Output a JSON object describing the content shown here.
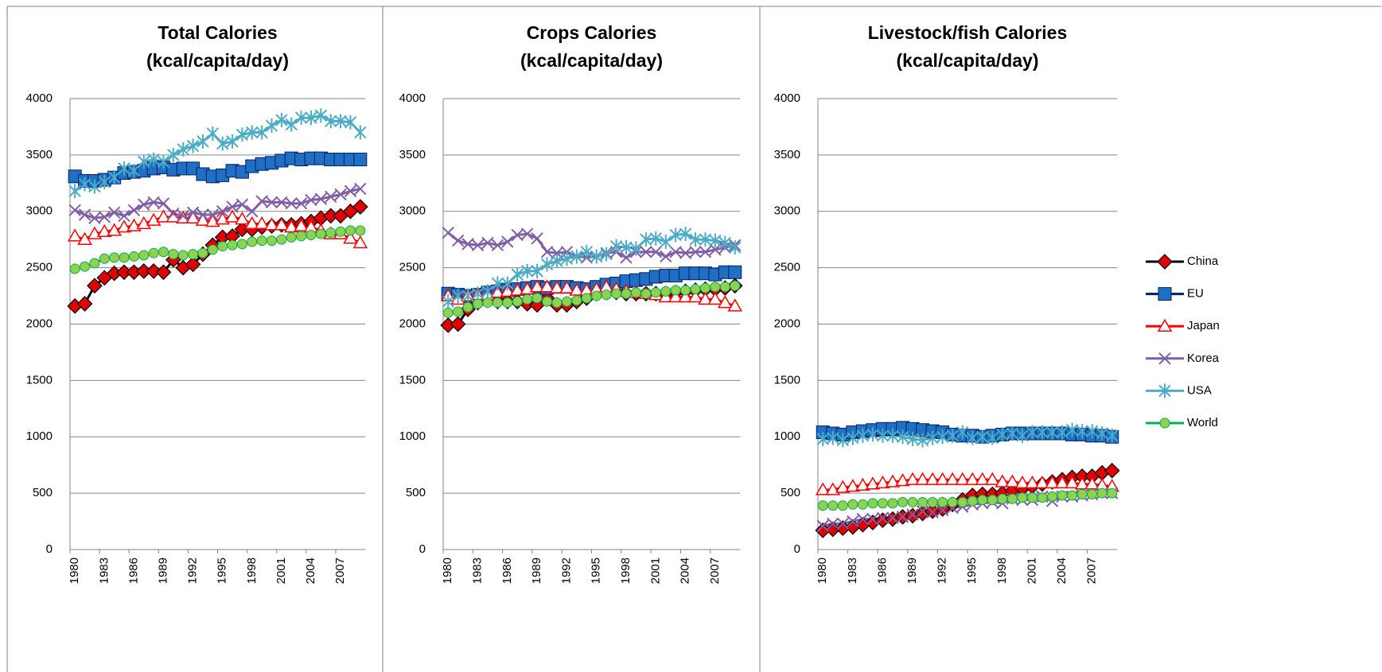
{
  "chart_data": [
    {
      "type": "line",
      "title": [
        "Total Calories",
        "(kcal/capita/day)"
      ],
      "categories": [
        "1980",
        null,
        null,
        "1983",
        null,
        null,
        "1986",
        null,
        null,
        "1989",
        null,
        null,
        "1992",
        null,
        null,
        "1995",
        null,
        null,
        "1998",
        null,
        null,
        "2001",
        null,
        null,
        "2004",
        null,
        null,
        "2007",
        null,
        null
      ],
      "ylim": [
        0,
        4000
      ],
      "yticks": [
        0,
        500,
        1000,
        1500,
        2000,
        2500,
        3000,
        3500,
        4000
      ],
      "grid": true,
      "series": [
        {
          "name": "China",
          "color": "#e00000",
          "line_color": "#000000",
          "marker": "diamond",
          "values": [
            2160,
            2180,
            2340,
            2410,
            2450,
            2460,
            2460,
            2470,
            2470,
            2460,
            2570,
            2500,
            2530,
            2620,
            2700,
            2770,
            2780,
            2840,
            2840,
            2860,
            2870,
            2880,
            2880,
            2890,
            2910,
            2940,
            2960,
            2960,
            3000,
            3040
          ]
        },
        {
          "name": "EU",
          "color": "#1f6fc5",
          "line_color": "#002060",
          "marker": "square",
          "values": [
            3310,
            3270,
            3270,
            3280,
            3300,
            3340,
            3350,
            3360,
            3380,
            3390,
            3370,
            3380,
            3380,
            3330,
            3310,
            3320,
            3360,
            3350,
            3400,
            3420,
            3430,
            3450,
            3470,
            3460,
            3470,
            3470,
            3460,
            3460,
            3460,
            3460
          ]
        },
        {
          "name": "Japan",
          "color": "#ff0000",
          "line_color": "#ff0000",
          "marker": "triangle",
          "values": [
            2780,
            2750,
            2800,
            2820,
            2830,
            2860,
            2870,
            2890,
            2920,
            2950,
            2950,
            2940,
            2940,
            2920,
            2910,
            2930,
            2950,
            2930,
            2890,
            2890,
            2880,
            2880,
            2860,
            2870,
            2860,
            2830,
            2800,
            2800,
            2760,
            2720
          ]
        },
        {
          "name": "Korea",
          "color": "#7f5fa5",
          "line_color": "#7f5fa5",
          "marker": "x",
          "values": [
            3010,
            2970,
            2940,
            2950,
            2990,
            2960,
            3010,
            3060,
            3080,
            3070,
            2980,
            2960,
            2990,
            2970,
            2970,
            3000,
            3040,
            3060,
            3000,
            3090,
            3080,
            3080,
            3070,
            3070,
            3100,
            3110,
            3130,
            3150,
            3180,
            3200
          ]
        },
        {
          "name": "USA",
          "color": "#4bacc6",
          "line_color": "#4bacc6",
          "marker": "star",
          "values": [
            3180,
            3240,
            3220,
            3260,
            3300,
            3380,
            3360,
            3440,
            3460,
            3440,
            3500,
            3550,
            3580,
            3620,
            3690,
            3600,
            3620,
            3680,
            3700,
            3700,
            3760,
            3810,
            3770,
            3830,
            3830,
            3850,
            3800,
            3800,
            3790,
            3700
          ]
        },
        {
          "name": "World",
          "color": "#92d050",
          "line_color": "#00b050",
          "marker": "circle",
          "values": [
            2490,
            2510,
            2540,
            2580,
            2590,
            2590,
            2600,
            2610,
            2630,
            2640,
            2620,
            2610,
            2620,
            2630,
            2660,
            2690,
            2700,
            2710,
            2730,
            2740,
            2740,
            2750,
            2770,
            2780,
            2790,
            2800,
            2810,
            2820,
            2830,
            2830
          ]
        }
      ]
    },
    {
      "type": "line",
      "title": [
        "Crops Calories",
        "(kcal/capita/day)"
      ],
      "categories": [
        "1980",
        null,
        null,
        "1983",
        null,
        null,
        "1986",
        null,
        null,
        "1989",
        null,
        null,
        "1992",
        null,
        null,
        "1995",
        null,
        null,
        "1998",
        null,
        null,
        "2001",
        null,
        null,
        "2004",
        null,
        null,
        "2007",
        null,
        null
      ],
      "ylim": [
        0,
        4000
      ],
      "yticks": [
        0,
        500,
        1000,
        1500,
        2000,
        2500,
        3000,
        3500,
        4000
      ],
      "grid": true,
      "series": [
        {
          "name": "China",
          "color": "#e00000",
          "line_color": "#000000",
          "marker": "diamond",
          "values": [
            1990,
            2000,
            2130,
            2190,
            2210,
            2200,
            2200,
            2200,
            2180,
            2170,
            2230,
            2170,
            2170,
            2200,
            2230,
            2270,
            2280,
            2280,
            2270,
            2270,
            2270,
            2270,
            2270,
            2280,
            2290,
            2300,
            2310,
            2310,
            2320,
            2340
          ]
        },
        {
          "name": "EU",
          "color": "#1f6fc5",
          "line_color": "#002060",
          "marker": "square",
          "values": [
            2270,
            2260,
            2250,
            2260,
            2280,
            2290,
            2300,
            2310,
            2320,
            2330,
            2320,
            2330,
            2330,
            2320,
            2310,
            2330,
            2350,
            2360,
            2380,
            2390,
            2400,
            2420,
            2430,
            2430,
            2450,
            2450,
            2450,
            2440,
            2460,
            2460
          ]
        },
        {
          "name": "Japan",
          "color": "#ff0000",
          "line_color": "#ff0000",
          "marker": "triangle",
          "values": [
            2250,
            2220,
            2250,
            2260,
            2260,
            2280,
            2290,
            2300,
            2310,
            2330,
            2330,
            2320,
            2320,
            2300,
            2300,
            2310,
            2330,
            2310,
            2290,
            2280,
            2270,
            2260,
            2240,
            2240,
            2240,
            2240,
            2220,
            2220,
            2190,
            2160
          ]
        },
        {
          "name": "Korea",
          "color": "#7f5fa5",
          "line_color": "#7f5fa5",
          "marker": "x",
          "values": [
            2810,
            2740,
            2710,
            2700,
            2720,
            2700,
            2730,
            2790,
            2800,
            2760,
            2640,
            2630,
            2640,
            2600,
            2590,
            2600,
            2630,
            2640,
            2590,
            2640,
            2640,
            2640,
            2600,
            2640,
            2630,
            2640,
            2640,
            2660,
            2680,
            2700
          ]
        },
        {
          "name": "USA",
          "color": "#4bacc6",
          "line_color": "#4bacc6",
          "marker": "star",
          "values": [
            2200,
            2250,
            2250,
            2270,
            2290,
            2360,
            2360,
            2440,
            2470,
            2470,
            2530,
            2560,
            2580,
            2600,
            2640,
            2600,
            2620,
            2690,
            2680,
            2670,
            2750,
            2760,
            2730,
            2790,
            2800,
            2750,
            2750,
            2740,
            2720,
            2680
          ]
        },
        {
          "name": "World",
          "color": "#92d050",
          "line_color": "#00b050",
          "marker": "circle",
          "values": [
            2100,
            2110,
            2150,
            2180,
            2190,
            2190,
            2190,
            2200,
            2220,
            2230,
            2200,
            2190,
            2200,
            2210,
            2230,
            2250,
            2260,
            2270,
            2270,
            2280,
            2270,
            2280,
            2290,
            2300,
            2300,
            2310,
            2320,
            2330,
            2330,
            2340
          ]
        }
      ]
    },
    {
      "type": "line",
      "title": [
        "Livestock/fish Calories",
        "(kcal/capita/day)"
      ],
      "categories": [
        "1980",
        null,
        null,
        "1983",
        null,
        null,
        "1986",
        null,
        null,
        "1989",
        null,
        null,
        "1992",
        null,
        null,
        "1995",
        null,
        null,
        "1998",
        null,
        null,
        "2001",
        null,
        null,
        "2004",
        null,
        null,
        "2007",
        null,
        null
      ],
      "ylim": [
        0,
        4000
      ],
      "yticks": [
        0,
        500,
        1000,
        1500,
        2000,
        2500,
        3000,
        3500,
        4000
      ],
      "grid": true,
      "legend": "right",
      "series": [
        {
          "name": "China",
          "color": "#e00000",
          "line_color": "#000000",
          "marker": "diamond",
          "values": [
            170,
            180,
            190,
            200,
            220,
            240,
            260,
            270,
            290,
            300,
            320,
            340,
            360,
            400,
            440,
            480,
            490,
            490,
            500,
            520,
            540,
            560,
            580,
            600,
            620,
            640,
            650,
            650,
            680,
            700
          ]
        },
        {
          "name": "EU",
          "color": "#1f6fc5",
          "line_color": "#002060",
          "marker": "square",
          "values": [
            1040,
            1030,
            1020,
            1040,
            1050,
            1060,
            1070,
            1070,
            1080,
            1070,
            1060,
            1050,
            1040,
            1020,
            1010,
            1010,
            1000,
            1010,
            1020,
            1030,
            1030,
            1030,
            1030,
            1030,
            1030,
            1020,
            1020,
            1010,
            1010,
            1000
          ]
        },
        {
          "name": "Japan",
          "color": "#ff0000",
          "line_color": "#ff0000",
          "marker": "triangle",
          "values": [
            530,
            530,
            550,
            560,
            570,
            580,
            590,
            600,
            610,
            620,
            620,
            620,
            620,
            620,
            620,
            620,
            620,
            620,
            600,
            600,
            590,
            590,
            590,
            590,
            590,
            590,
            580,
            580,
            570,
            560
          ]
        },
        {
          "name": "Korea",
          "color": "#7f5fa5",
          "line_color": "#7f5fa5",
          "marker": "x",
          "values": [
            210,
            230,
            230,
            250,
            270,
            270,
            280,
            280,
            290,
            310,
            340,
            330,
            350,
            370,
            380,
            400,
            410,
            420,
            410,
            450,
            440,
            440,
            470,
            430,
            470,
            470,
            480,
            490,
            500,
            500
          ]
        },
        {
          "name": "USA",
          "color": "#4bacc6",
          "line_color": "#4bacc6",
          "marker": "star",
          "values": [
            980,
            990,
            970,
            990,
            1010,
            1020,
            1010,
            1010,
            1000,
            980,
            970,
            990,
            1000,
            1010,
            1040,
            990,
            1000,
            990,
            1020,
            1030,
            1010,
            1040,
            1040,
            1040,
            1040,
            1060,
            1050,
            1050,
            1030,
            1010
          ]
        },
        {
          "name": "World",
          "color": "#92d050",
          "line_color": "#00b050",
          "marker": "circle",
          "values": [
            390,
            390,
            390,
            400,
            400,
            410,
            410,
            410,
            420,
            420,
            420,
            420,
            420,
            420,
            420,
            430,
            440,
            440,
            450,
            450,
            460,
            460,
            460,
            470,
            480,
            480,
            490,
            490,
            500,
            500
          ]
        }
      ]
    }
  ]
}
